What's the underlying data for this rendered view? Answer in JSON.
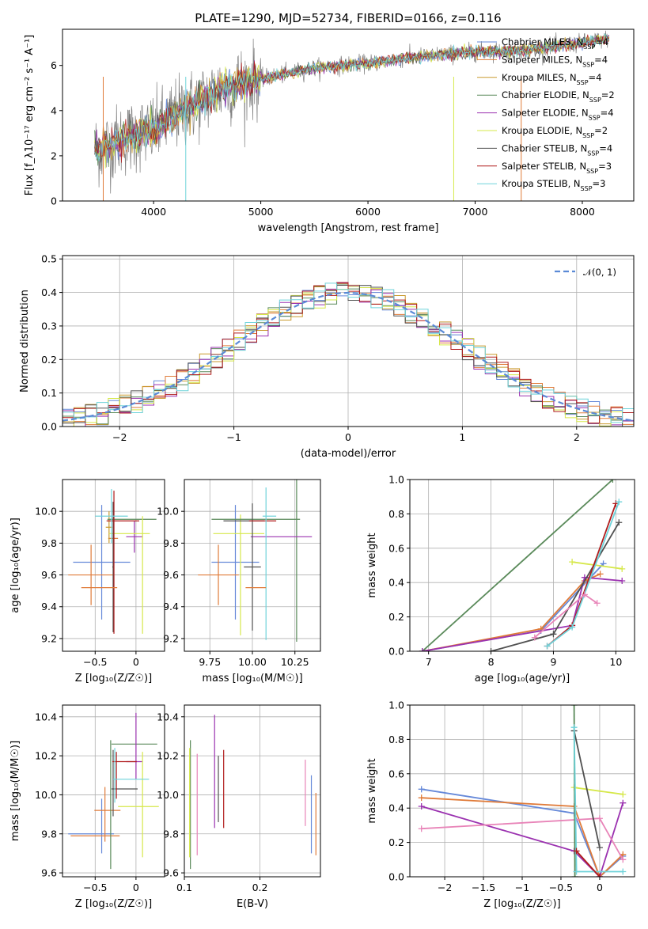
{
  "title": "PLATE=1290, MJD=52734, FIBERID=0166, z=0.116",
  "colors": {
    "Chabrier MILES": "#6689d9",
    "Salpeter MILES": "#e07b39",
    "Kroupa MILES": "#c99a2e",
    "Chabrier ELODIE": "#5a8a5a",
    "Salpeter ELODIE": "#9b32b0",
    "Kroupa ELODIE": "#d6e84a",
    "Chabrier STELIB": "#505050",
    "Salpeter STELIB": "#b01c1c",
    "Kroupa STELIB": "#6fd3da",
    "data": "#808080",
    "salpeter_miles_line": "#e884b8",
    "normal": "#5b8ad6"
  },
  "chart_data": [
    {
      "id": "spectrum",
      "type": "line",
      "title": "PLATE=1290, MJD=52734, FIBERID=0166, z=0.116",
      "xlabel": "wavelength [Angstrom, rest frame]",
      "ylabel": "Flux [f_λ10^-17 erg cm^-2 s^-1 A^-1]",
      "xlim": [
        3150,
        8480
      ],
      "ylim": [
        0,
        7.6
      ],
      "xticks": [
        4000,
        5000,
        6000,
        7000,
        8000
      ],
      "yticks": [
        0,
        2,
        4,
        6
      ],
      "grid": false,
      "legend_position": "top-right",
      "legend": [
        {
          "name": "Chabrier MILES",
          "sub": "SSP",
          "n": "4"
        },
        {
          "name": "Salpeter MILES",
          "sub": "SSP",
          "n": "4"
        },
        {
          "name": "Kroupa MILES",
          "sub": "SSP",
          "n": "4"
        },
        {
          "name": "Chabrier ELODIE",
          "sub": "SSP",
          "n": "2"
        },
        {
          "name": "Salpeter ELODIE",
          "sub": "SSP",
          "n": "4"
        },
        {
          "name": "Kroupa ELODIE",
          "sub": "SSP",
          "n": "2"
        },
        {
          "name": "Chabrier STELIB",
          "sub": "SSP",
          "n": "4"
        },
        {
          "name": "Salpeter STELIB",
          "sub": "SSP",
          "n": "3"
        },
        {
          "name": "Kroupa STELIB",
          "sub": "SSP",
          "n": "3"
        }
      ],
      "continuum": [
        [
          3500,
          2.3
        ],
        [
          3700,
          2.7
        ],
        [
          3900,
          3.0
        ],
        [
          4000,
          3.1
        ],
        [
          4200,
          3.8
        ],
        [
          4400,
          4.3
        ],
        [
          4600,
          4.9
        ],
        [
          4800,
          5.2
        ],
        [
          5000,
          5.4
        ],
        [
          5200,
          5.6
        ],
        [
          5500,
          5.9
        ],
        [
          6000,
          6.1
        ],
        [
          6500,
          6.4
        ],
        [
          7000,
          6.6
        ],
        [
          7500,
          6.7
        ],
        [
          8000,
          7.0
        ],
        [
          8250,
          7.2
        ]
      ],
      "noise_sigma_blue": 1.5,
      "noise_sigma_red": 0.35
    },
    {
      "id": "residuals",
      "type": "line",
      "xlabel": "(data-model)/error",
      "ylabel": "Normed distribution",
      "xlim": [
        -2.5,
        2.5
      ],
      "ylim": [
        0,
        0.51
      ],
      "xticks": [
        -2,
        -1,
        0,
        1,
        2
      ],
      "yticks": [
        0.0,
        0.1,
        0.2,
        0.3,
        0.4,
        0.5
      ],
      "grid": true,
      "legend_position": "top-right",
      "legend_label": "𝒩(0, 1)",
      "bin_width": 0.1,
      "series_jitter": 0.035
    },
    {
      "id": "z-vs-age",
      "type": "scatter",
      "xlabel": "Z [log₁₀(Z/Z☉)]",
      "ylabel": "age  [log₁₀(age/yr)]",
      "xlim": [
        -0.9,
        0.35
      ],
      "ylim": [
        9.12,
        10.2
      ],
      "xticks": [
        -0.5,
        0.0
      ],
      "yticks": [
        9.2,
        9.4,
        9.6,
        9.8,
        10.0
      ],
      "grid": true,
      "points": [
        {
          "model": "Chabrier MILES",
          "x": -0.42,
          "xerr": 0.35,
          "y": 9.68,
          "yerr": 0.36
        },
        {
          "model": "Salpeter MILES",
          "x": -0.55,
          "xerr": 0.28,
          "y": 9.6,
          "yerr": 0.19
        },
        {
          "model": "Salpeter MILES",
          "x": -0.28,
          "xerr": 0.06,
          "y": 9.83,
          "yerr": 0.0
        },
        {
          "model": "Kroupa MILES",
          "x": -0.33,
          "xerr": 0.04,
          "y": 9.9,
          "yerr": 0.1
        },
        {
          "model": "Chabrier ELODIE",
          "x": -0.05,
          "xerr": 0.3,
          "y": 9.95,
          "yerr": 0.0
        },
        {
          "model": "Salpeter ELODIE",
          "x": -0.02,
          "xerr": 0.1,
          "y": 9.84,
          "yerr": 0.1
        },
        {
          "model": "Kroupa ELODIE",
          "x": -0.08,
          "xerr": 0.25,
          "y": 9.86,
          "yerr": 0.0
        },
        {
          "model": "Kroupa ELODIE",
          "x": 0.08,
          "xerr": 0.0,
          "y": 9.6,
          "yerr": 0.37
        },
        {
          "model": "Chabrier STELIB",
          "x": -0.28,
          "xerr": 0.01,
          "y": 9.65,
          "yerr": 0.41
        },
        {
          "model": "Salpeter STELIB",
          "x": -0.16,
          "xerr": 0.2,
          "y": 9.94,
          "yerr": 0.0
        },
        {
          "model": "Salpeter STELIB",
          "x": -0.27,
          "xerr": 0.0,
          "y": 9.68,
          "yerr": 0.45
        },
        {
          "model": "Kroupa STELIB",
          "x": -0.3,
          "xerr": 0.2,
          "y": 9.97,
          "yerr": 0.17
        },
        {
          "model": "Salpeter MILES",
          "x": -0.45,
          "xerr": 0.22,
          "y": 9.52,
          "yerr": 0.0
        }
      ]
    },
    {
      "id": "mass-vs-age",
      "type": "scatter",
      "xlabel": "mass [log₁₀(M/M☉)]",
      "ylabel": "",
      "xlim": [
        9.6,
        10.4
      ],
      "ylim": [
        9.12,
        10.2
      ],
      "xticks": [
        9.75,
        10.0,
        10.25
      ],
      "xticklabels": [
        "9.75",
        "10.00",
        "10.25"
      ],
      "yticks": [
        9.2,
        9.4,
        9.6,
        9.8,
        10.0
      ],
      "grid": true,
      "points": [
        {
          "model": "Chabrier MILES",
          "x": 9.9,
          "xerr": 0.14,
          "y": 9.68,
          "yerr": 0.36
        },
        {
          "model": "Salpeter MILES",
          "x": 9.8,
          "xerr": 0.12,
          "y": 9.6,
          "yerr": 0.19
        },
        {
          "model": "Kroupa ELODIE",
          "x": 9.92,
          "xerr": 0.15,
          "y": 9.86,
          "yerr": 0.0
        },
        {
          "model": "Kroupa ELODIE",
          "x": 9.93,
          "xerr": 0.0,
          "y": 9.6,
          "yerr": 0.38
        },
        {
          "model": "Chabrier ELODIE",
          "x": 10.02,
          "xerr": 0.26,
          "y": 9.95,
          "yerr": 0.0
        },
        {
          "model": "Chabrier ELODIE",
          "x": 10.26,
          "xerr": 0.0,
          "y": 9.7,
          "yerr": 0.52
        },
        {
          "model": "Salpeter ELODIE",
          "x": 10.17,
          "xerr": 0.18,
          "y": 9.84,
          "yerr": 0.0
        },
        {
          "model": "Chabrier STELIB",
          "x": 10.0,
          "xerr": 0.05,
          "y": 9.65,
          "yerr": 0.4
        },
        {
          "model": "Chabrier STELIB",
          "x": 9.95,
          "xerr": 0.12,
          "y": 9.94,
          "yerr": 0.0
        },
        {
          "model": "Salpeter STELIB",
          "x": 10.06,
          "xerr": 0.08,
          "y": 9.94,
          "yerr": 0.0
        },
        {
          "model": "Kroupa STELIB",
          "x": 10.08,
          "xerr": 0.0,
          "y": 9.67,
          "yerr": 0.48
        },
        {
          "model": "Salpeter MILES",
          "x": 10.02,
          "xerr": 0.06,
          "y": 9.52,
          "yerr": 0.0
        },
        {
          "model": "Kroupa STELIB",
          "x": 10.1,
          "xerr": 0.04,
          "y": 9.97,
          "yerr": 0.0
        }
      ]
    },
    {
      "id": "age-weights",
      "type": "line",
      "xlabel": "age  [log₁₀(age/yr)]",
      "ylabel": "mass weight",
      "xlim": [
        6.7,
        10.3
      ],
      "ylim": [
        0,
        1.0
      ],
      "xticks": [
        7,
        8,
        9,
        10
      ],
      "yticks": [
        0.0,
        0.2,
        0.4,
        0.6,
        0.8,
        1.0
      ],
      "grid": true,
      "series": [
        {
          "model": "Chabrier MILES",
          "x": [
            6.9,
            8.8,
            9.8
          ],
          "y": [
            0.0,
            0.12,
            0.51
          ]
        },
        {
          "model": "Salpeter MILES",
          "x": [
            6.9,
            8.8,
            9.5,
            9.75
          ],
          "y": [
            0.0,
            0.13,
            0.41,
            0.45
          ]
        },
        {
          "model": "Chabrier ELODIE",
          "x": [
            6.9,
            9.95
          ],
          "y": [
            0.0,
            1.0
          ]
        },
        {
          "model": "Salpeter ELODIE",
          "x": [
            6.9,
            9.3,
            9.5,
            10.1
          ],
          "y": [
            0.0,
            0.15,
            0.43,
            0.41
          ]
        },
        {
          "model": "Kroupa ELODIE",
          "x": [
            9.3,
            10.1
          ],
          "y": [
            0.52,
            0.48
          ]
        },
        {
          "model": "Chabrier STELIB",
          "x": [
            8.0,
            9.0,
            10.05
          ],
          "y": [
            0.0,
            0.1,
            0.75
          ]
        },
        {
          "model": "Salpeter STELIB",
          "x": [
            8.9,
            9.3,
            10.0
          ],
          "y": [
            0.03,
            0.15,
            0.86
          ]
        },
        {
          "model": "Kroupa STELIB",
          "x": [
            8.9,
            9.3,
            10.05
          ],
          "y": [
            0.03,
            0.14,
            0.87
          ]
        },
        {
          "model": "Salpeter MILES line",
          "x": [
            8.7,
            9.5,
            9.7
          ],
          "y": [
            0.08,
            0.33,
            0.28
          ]
        }
      ]
    },
    {
      "id": "z-vs-mass",
      "type": "scatter",
      "xlabel": "Z [log₁₀(Z/Z☉)]",
      "ylabel": "mass [log₁₀(M/M☉)]",
      "xlim": [
        -0.9,
        0.35
      ],
      "ylim": [
        9.58,
        10.46
      ],
      "xticks": [
        -0.5,
        0.0
      ],
      "yticks": [
        9.6,
        9.8,
        10.0,
        10.2,
        10.4
      ],
      "grid": true,
      "points": [
        {
          "model": "Chabrier MILES",
          "x": -0.55,
          "xerr": 0.28,
          "y": 9.8,
          "yerr": 0.0
        },
        {
          "model": "Chabrier MILES",
          "x": -0.42,
          "xerr": 0.0,
          "y": 9.84,
          "yerr": 0.14
        },
        {
          "model": "Salpeter MILES",
          "x": -0.5,
          "xerr": 0.3,
          "y": 9.79,
          "yerr": 0.0
        },
        {
          "model": "Salpeter MILES",
          "x": -0.38,
          "xerr": 0.0,
          "y": 9.9,
          "yerr": 0.14
        },
        {
          "model": "Salpeter MILES",
          "x": -0.35,
          "xerr": 0.16,
          "y": 9.92,
          "yerr": 0.0
        },
        {
          "model": "Chabrier ELODIE",
          "x": -0.02,
          "xerr": 0.28,
          "y": 10.26,
          "yerr": 0.0
        },
        {
          "model": "Chabrier ELODIE",
          "x": -0.31,
          "xerr": 0.0,
          "y": 9.95,
          "yerr": 0.33
        },
        {
          "model": "Salpeter ELODIE",
          "x": -0.02,
          "xerr": 0.1,
          "y": 10.17,
          "yerr": 0.0
        },
        {
          "model": "Salpeter ELODIE",
          "x": 0.0,
          "xerr": 0.0,
          "y": 10.25,
          "yerr": 0.17
        },
        {
          "model": "Kroupa ELODIE",
          "x": 0.03,
          "xerr": 0.25,
          "y": 9.94,
          "yerr": 0.0
        },
        {
          "model": "Kroupa ELODIE",
          "x": 0.08,
          "xerr": 0.0,
          "y": 9.95,
          "yerr": 0.27
        },
        {
          "model": "Chabrier STELIB",
          "x": -0.14,
          "xerr": 0.16,
          "y": 10.03,
          "yerr": 0.0
        },
        {
          "model": "Chabrier STELIB",
          "x": -0.28,
          "xerr": 0.0,
          "y": 10.06,
          "yerr": 0.17
        },
        {
          "model": "Salpeter STELIB",
          "x": -0.14,
          "xerr": 0.15,
          "y": 10.17,
          "yerr": 0.0
        },
        {
          "model": "Salpeter STELIB",
          "x": -0.24,
          "xerr": 0.0,
          "y": 10.1,
          "yerr": 0.12
        },
        {
          "model": "Kroupa STELIB",
          "x": -0.06,
          "xerr": 0.22,
          "y": 10.08,
          "yerr": 0.0
        },
        {
          "model": "Kroupa STELIB",
          "x": -0.26,
          "xerr": 0.0,
          "y": 10.1,
          "yerr": 0.14
        }
      ]
    },
    {
      "id": "ebv-vs-mass",
      "type": "scatter",
      "xlabel": "E(B-V)",
      "ylabel": "",
      "xlim": [
        0.1,
        0.28
      ],
      "ylim": [
        9.58,
        10.46
      ],
      "xticks": [
        0.1,
        0.2
      ],
      "yticks": [
        9.6,
        9.8,
        10.0,
        10.2,
        10.4
      ],
      "grid": true,
      "points": [
        {
          "model": "Chabrier ELODIE",
          "x": 0.108,
          "xerr": 0.0,
          "y": 9.95,
          "yerr": 0.33
        },
        {
          "model": "Kroupa ELODIE",
          "x": 0.107,
          "xerr": 0.0,
          "y": 9.96,
          "yerr": 0.28
        },
        {
          "model": "Salpeter MILES line",
          "x": 0.117,
          "xerr": 0.0,
          "y": 9.95,
          "yerr": 0.26
        },
        {
          "model": "Salpeter ELODIE",
          "x": 0.14,
          "xerr": 0.0,
          "y": 10.12,
          "yerr": 0.29
        },
        {
          "model": "Chabrier STELIB",
          "x": 0.145,
          "xerr": 0.0,
          "y": 10.03,
          "yerr": 0.17
        },
        {
          "model": "Salpeter STELIB",
          "x": 0.152,
          "xerr": 0.0,
          "y": 10.03,
          "yerr": 0.2
        },
        {
          "model": "Salpeter MILES line",
          "x": 0.26,
          "xerr": 0.0,
          "y": 10.01,
          "yerr": 0.17
        },
        {
          "model": "Chabrier MILES",
          "x": 0.268,
          "xerr": 0.0,
          "y": 9.9,
          "yerr": 0.2
        },
        {
          "model": "Salpeter MILES",
          "x": 0.274,
          "xerr": 0.0,
          "y": 9.85,
          "yerr": 0.16
        }
      ]
    },
    {
      "id": "z-weights",
      "type": "line",
      "xlabel": "Z [log₁₀(Z/Z☉)]",
      "ylabel": "mass weight",
      "xlim": [
        -2.45,
        0.45
      ],
      "ylim": [
        0,
        1.0
      ],
      "xticks": [
        -2.0,
        -1.5,
        -1.0,
        -0.5,
        0.0
      ],
      "yticks": [
        0.0,
        0.2,
        0.4,
        0.6,
        0.8,
        1.0
      ],
      "grid": true,
      "series": [
        {
          "model": "Chabrier MILES",
          "x": [
            -2.3,
            -0.33,
            0.0,
            0.3
          ],
          "y": [
            0.51,
            0.37,
            0.0,
            0.12
          ]
        },
        {
          "model": "Salpeter MILES",
          "x": [
            -2.3,
            -0.33,
            0.0,
            0.3
          ],
          "y": [
            0.46,
            0.41,
            0.0,
            0.13
          ]
        },
        {
          "model": "Salpeter ELODIE",
          "x": [
            -2.3,
            -0.33,
            0.0,
            0.3
          ],
          "y": [
            0.41,
            0.15,
            0.0,
            0.43
          ]
        },
        {
          "model": "Salpeter MILES line",
          "x": [
            -2.3,
            0.0,
            0.3
          ],
          "y": [
            0.28,
            0.34,
            0.1
          ]
        },
        {
          "model": "Kroupa ELODIE",
          "x": [
            -0.33,
            0.3
          ],
          "y": [
            0.52,
            0.48
          ]
        },
        {
          "model": "Chabrier STELIB",
          "x": [
            -0.33,
            0.0
          ],
          "y": [
            0.85,
            0.17
          ]
        },
        {
          "model": "Chabrier ELODIE",
          "x": [
            -0.33,
            -0.32
          ],
          "y": [
            1.0,
            0.0
          ]
        },
        {
          "model": "Kroupa STELIB",
          "x": [
            -0.33,
            -0.3,
            0.3
          ],
          "y": [
            0.87,
            0.03,
            0.03
          ]
        },
        {
          "model": "Salpeter STELIB",
          "x": [
            -0.3,
            0.0
          ],
          "y": [
            0.15,
            0.0
          ]
        }
      ]
    }
  ]
}
